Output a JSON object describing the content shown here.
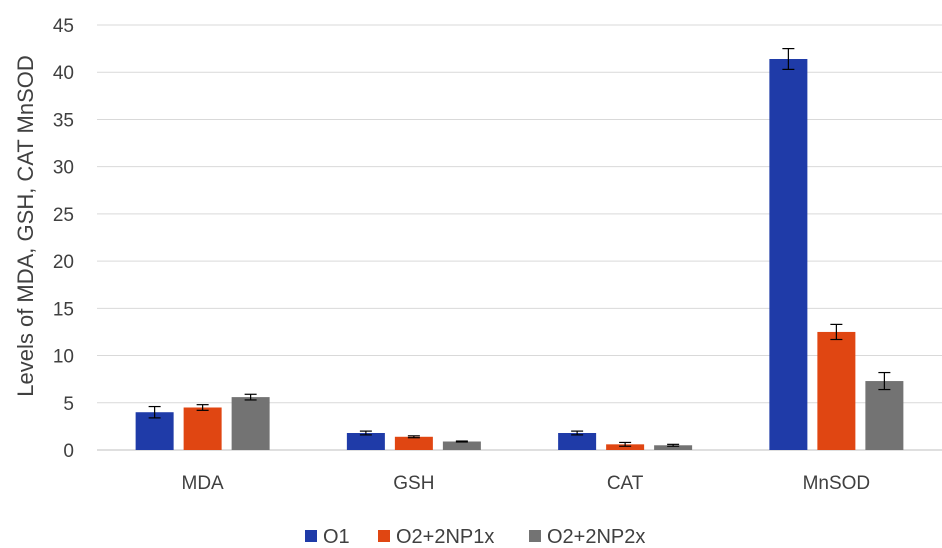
{
  "chart_data": {
    "type": "bar",
    "categories": [
      "MDA",
      "GSH",
      "CAT",
      "MnSOD"
    ],
    "series": [
      {
        "name": "O1",
        "color": "#1F3BA8",
        "values": [
          4.0,
          1.8,
          1.8,
          41.4
        ],
        "errors": [
          0.6,
          0.2,
          0.2,
          1.1
        ]
      },
      {
        "name": "O2+2NP1x",
        "color": "#E04612",
        "values": [
          4.5,
          1.4,
          0.6,
          12.5
        ],
        "errors": [
          0.3,
          0.1,
          0.2,
          0.8
        ]
      },
      {
        "name": "O2+2NP2x",
        "color": "#737373",
        "values": [
          5.6,
          0.9,
          0.5,
          7.3
        ],
        "errors": [
          0.3,
          0.05,
          0.1,
          0.9
        ]
      }
    ],
    "ylabel": "Levels of MDA, GSH, CAT MnSOD",
    "xlabel": "",
    "ylim": [
      0,
      45
    ],
    "yticks": [
      0,
      5,
      10,
      15,
      20,
      25,
      30,
      35,
      40,
      45
    ],
    "grid": true,
    "legend_position": "bottom"
  }
}
